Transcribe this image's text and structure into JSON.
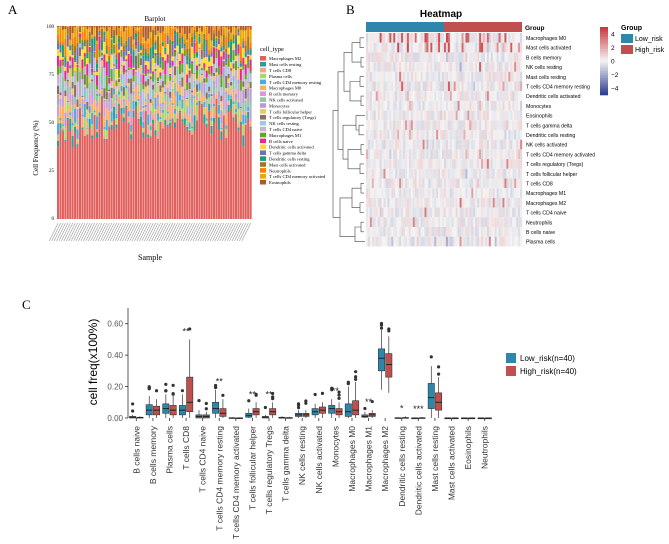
{
  "panels": {
    "a": {
      "letter": "A"
    },
    "b": {
      "letter": "B"
    },
    "c": {
      "letter": "C"
    }
  },
  "colors": {
    "low": "#2e86ab",
    "high": "#c0504d",
    "heat_low": "#2b3a8f",
    "heat_mid": "#f4f4f4",
    "heat_high": "#c8343b"
  },
  "chart_data": [
    {
      "type": "bar",
      "subtype": "stacked-percent",
      "title": "Barplot",
      "xlabel": "Sample",
      "ylabel": "Cell Frequency (%)",
      "ylim": [
        0,
        100
      ],
      "yticks": [
        "0",
        "25",
        "50",
        "75",
        "100"
      ],
      "n_samples": 80,
      "legend_title": "cell_type",
      "legend": [
        {
          "name": "Macrophages M2",
          "color": "#e0605e"
        },
        {
          "name": "Mast cells resting",
          "color": "#2aa198"
        },
        {
          "name": "T cells CD8",
          "color": "#f4a582"
        },
        {
          "name": "Plasma cells",
          "color": "#a6d96a"
        },
        {
          "name": "T cells CD4 memory resting",
          "color": "#4daadc"
        },
        {
          "name": "Macrophages M0",
          "color": "#fdae61"
        },
        {
          "name": "B cells memory",
          "color": "#d49bd8"
        },
        {
          "name": "NK cells activated",
          "color": "#8fc7a6"
        },
        {
          "name": "Monocytes",
          "color": "#b79bd8"
        },
        {
          "name": "T cells follicular helper",
          "color": "#e8c86e"
        },
        {
          "name": "T cells regulatory (Tregs)",
          "color": "#8d6e63"
        },
        {
          "name": "NK cells resting",
          "color": "#9ecae1"
        },
        {
          "name": "T cells CD4 naive",
          "color": "#cab2d6"
        },
        {
          "name": "Macrophages M1",
          "color": "#66a61e"
        },
        {
          "name": "B cells naive",
          "color": "#e7298a"
        },
        {
          "name": "Dendritic cells activated",
          "color": "#ffd92f"
        },
        {
          "name": "T cells gamma delta",
          "color": "#7570b3"
        },
        {
          "name": "Dendritic cells resting",
          "color": "#1b9e77"
        },
        {
          "name": "Mast cells activated",
          "color": "#a6761d"
        },
        {
          "name": "Neutrophils",
          "color": "#ff7f00"
        },
        {
          "name": "T cells CD4 memory activated",
          "color": "#e6ab02"
        },
        {
          "name": "Eosinophils",
          "color": "#b15928"
        }
      ]
    },
    {
      "type": "heatmap",
      "title": "Heatmap",
      "group_label": "Group",
      "groups": [
        "Low_risk",
        "High_risk"
      ],
      "scale_ticks": [
        "4",
        "2",
        "0",
        "−2",
        "−4"
      ],
      "scale_range": [
        -5,
        5
      ],
      "rows": [
        "Macrophages M0",
        "Mast cells activated",
        "B cells memory",
        "NK cells resting",
        "Mast cells resting",
        "T cells CD4 memory resting",
        "Dendritic cells activated",
        "Monocytes",
        "Eosinophils",
        "T cells gamma delta",
        "Dendritic cells resting",
        "NK cells activated",
        "T cells CD4 memory activated",
        "T cells regulatory (Tregs)",
        "T cells follicular helper",
        "T cells CD8",
        "Macrophages M1",
        "Macrophages M2",
        "T cells CD4 naive",
        "Neutrophils",
        "B cells naive",
        "Plasma cells"
      ],
      "n_low": 40,
      "n_high": 40
    },
    {
      "type": "box",
      "ylabel": "cell freq(x100%)",
      "ylim": [
        0,
        0.7
      ],
      "yticks": [
        0.0,
        0.2,
        0.4,
        0.6
      ],
      "ytick_labels": [
        "0.00",
        "0.20",
        "0.40",
        "0.60"
      ],
      "series_names": [
        "Low_risk(n=40)",
        "High_risk(n=40)"
      ],
      "categories": [
        "B cells naive",
        "B cells memory",
        "Plasma cells",
        "T cells CD8",
        "T cells CD4 naive",
        "T cells CD4 memory resting",
        "T cells CD4 memory activated",
        "T cells follicular helper",
        "T cells regulatory  Tregs",
        "T cells gamma delta",
        "NK cells resting",
        "NK cells activated",
        "Monocytes",
        "Macrophages M0",
        "Macrophages M1",
        "Macrophages M2",
        "Dendritic cells resting",
        "Dendritic cells activated",
        "Mast cells resting",
        "Mast cells activated",
        "Eosinophils",
        "Neutrophils"
      ],
      "significance": [
        "",
        "",
        "",
        "**",
        "",
        "**",
        "",
        "**",
        "**",
        "",
        "",
        "",
        "**",
        "",
        "**",
        "",
        "*",
        "***",
        "",
        "",
        "",
        ""
      ],
      "low": [
        [
          0.0,
          0.0,
          0.005,
          0.01,
          0.02
        ],
        [
          0.0,
          0.02,
          0.05,
          0.085,
          0.14
        ],
        [
          0.0,
          0.03,
          0.06,
          0.09,
          0.15
        ],
        [
          0.0,
          0.02,
          0.05,
          0.08,
          0.15
        ],
        [
          0.0,
          0.0,
          0.01,
          0.02,
          0.05
        ],
        [
          0.0,
          0.03,
          0.06,
          0.1,
          0.18
        ],
        [
          0.0,
          0.0,
          0.0,
          0.002,
          0.005
        ],
        [
          0.0,
          0.005,
          0.015,
          0.03,
          0.06
        ],
        [
          0.0,
          0.0,
          0.005,
          0.01,
          0.02
        ],
        [
          0.0,
          0.0,
          0.0,
          0.005,
          0.01
        ],
        [
          0.0,
          0.01,
          0.02,
          0.03,
          0.05
        ],
        [
          0.0,
          0.02,
          0.04,
          0.06,
          0.09
        ],
        [
          0.0,
          0.03,
          0.06,
          0.08,
          0.12
        ],
        [
          0.0,
          0.01,
          0.04,
          0.09,
          0.2
        ],
        [
          0.0,
          0.005,
          0.01,
          0.02,
          0.04
        ],
        [
          0.18,
          0.3,
          0.38,
          0.44,
          0.56
        ],
        [
          0.0,
          0.0,
          0.0,
          0.002,
          0.005
        ],
        [
          0.0,
          0.0,
          0.0,
          0.0,
          0.002
        ],
        [
          0.0,
          0.06,
          0.13,
          0.22,
          0.33
        ],
        [
          0.0,
          0.0,
          0.0,
          0.0,
          0.002
        ],
        [
          0.0,
          0.0,
          0.0,
          0.0,
          0.002
        ],
        [
          0.0,
          0.0,
          0.0,
          0.0,
          0.002
        ]
      ],
      "high": [
        [
          0.0,
          0.0,
          0.002,
          0.005,
          0.01
        ],
        [
          0.0,
          0.02,
          0.05,
          0.075,
          0.12
        ],
        [
          0.0,
          0.02,
          0.05,
          0.08,
          0.14
        ],
        [
          0.0,
          0.04,
          0.1,
          0.26,
          0.5
        ],
        [
          0.0,
          0.0,
          0.01,
          0.02,
          0.04
        ],
        [
          0.0,
          0.01,
          0.03,
          0.06,
          0.12
        ],
        [
          0.0,
          0.0,
          0.0,
          0.001,
          0.004
        ],
        [
          0.0,
          0.02,
          0.04,
          0.06,
          0.1
        ],
        [
          0.0,
          0.02,
          0.04,
          0.06,
          0.1
        ],
        [
          0.0,
          0.0,
          0.0,
          0.003,
          0.008
        ],
        [
          0.0,
          0.01,
          0.02,
          0.03,
          0.05
        ],
        [
          0.0,
          0.03,
          0.05,
          0.07,
          0.1
        ],
        [
          0.0,
          0.02,
          0.04,
          0.06,
          0.1
        ],
        [
          0.0,
          0.02,
          0.05,
          0.11,
          0.23
        ],
        [
          0.0,
          0.01,
          0.02,
          0.03,
          0.05
        ],
        [
          0.16,
          0.26,
          0.34,
          0.41,
          0.52
        ],
        [
          0.0,
          0.0,
          0.0,
          0.003,
          0.01
        ],
        [
          0.0,
          0.0,
          0.0,
          0.002,
          0.006
        ],
        [
          0.0,
          0.05,
          0.1,
          0.16,
          0.26
        ],
        [
          0.0,
          0.0,
          0.0,
          0.0,
          0.003
        ],
        [
          0.0,
          0.0,
          0.0,
          0.0,
          0.003
        ],
        [
          0.0,
          0.0,
          0.0,
          0.0,
          0.002
        ]
      ]
    }
  ]
}
